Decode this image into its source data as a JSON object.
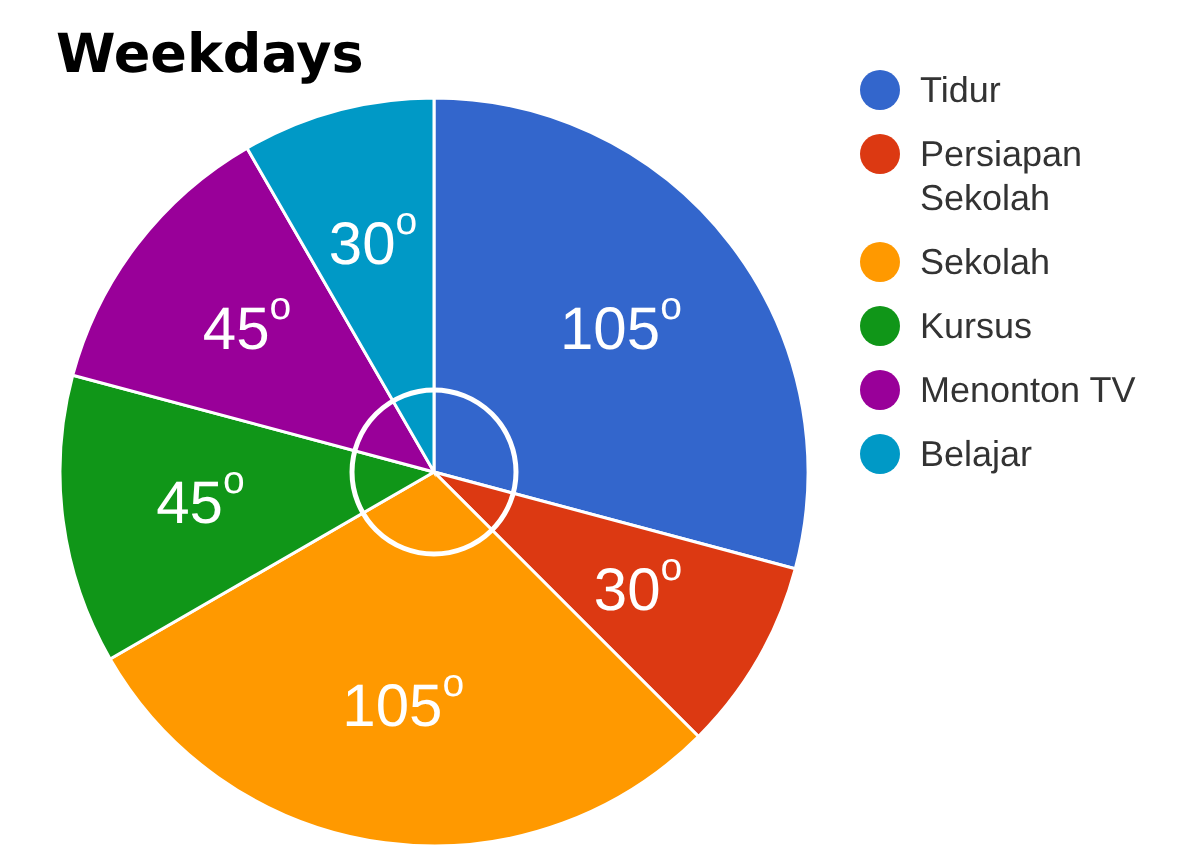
{
  "chart_data": {
    "type": "pie",
    "title": "Weekdays",
    "categories": [
      "Tidur",
      "Persiapan Sekolah",
      "Sekolah",
      "Kursus",
      "Menonton TV",
      "Belajar"
    ],
    "values": [
      105,
      30,
      105,
      45,
      45,
      30
    ],
    "colors": [
      "#3366cc",
      "#dc3912",
      "#ff9900",
      "#109618",
      "#990099",
      "#0099c6"
    ],
    "value_labels": [
      "105$^{o}$",
      "30$^{o}$",
      "105$^{o}$",
      "45$^{o}$",
      "45$^{o}$",
      "30$^{o}$"
    ],
    "legend": "right"
  }
}
